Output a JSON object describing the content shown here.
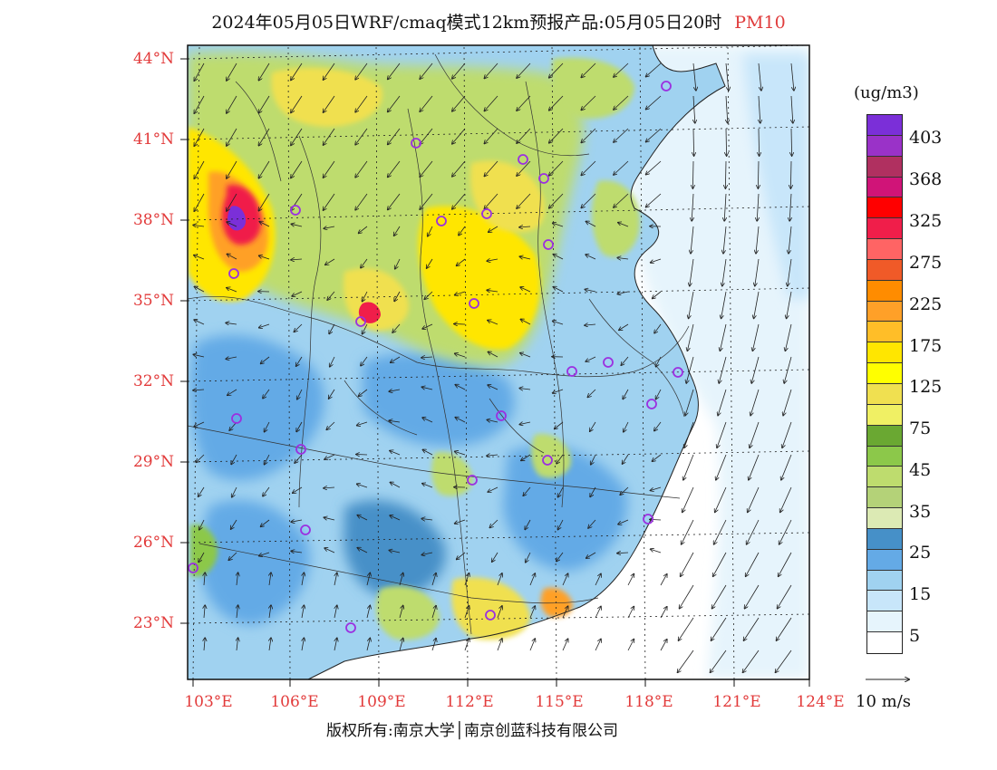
{
  "title": "2024年05月05日WRF/cmaq模式12km预报产品:05月05日20时",
  "variable": "PM10",
  "map": {
    "lat_labels": [
      "44°N",
      "41°N",
      "38°N",
      "35°N",
      "32°N",
      "29°N",
      "26°N",
      "23°N"
    ],
    "lon_labels": [
      "103°E",
      "106°E",
      "109°E",
      "112°E",
      "115°E",
      "118°E",
      "121°E",
      "124°E"
    ],
    "city_marker_color": "#9b30e0"
  },
  "legend": {
    "units": "(ug/m3)",
    "levels": [
      "403",
      "368",
      "325",
      "275",
      "225",
      "175",
      "125",
      "75",
      "45",
      "35",
      "25",
      "15",
      "5"
    ],
    "colors": [
      "#7b2fd8",
      "#9a32c8",
      "#b03060",
      "#d01478",
      "#ff0000",
      "#f01e4a",
      "#ff6464",
      "#f05a28",
      "#ff8c00",
      "#ffa028",
      "#ffbe28",
      "#ffe600",
      "#ffff00",
      "#f0e050",
      "#f0f064",
      "#6aa832",
      "#8cc84a",
      "#bedc6e",
      "#b4d278",
      "#dceab4",
      "#4690c8",
      "#64aae6",
      "#a0d2f0",
      "#c8e6fa",
      "#e6f4fc",
      "#ffffff"
    ]
  },
  "wind_reference": "10 m/s",
  "copyright": "版权所有:南京大学│南京创蓝科技有限公司"
}
